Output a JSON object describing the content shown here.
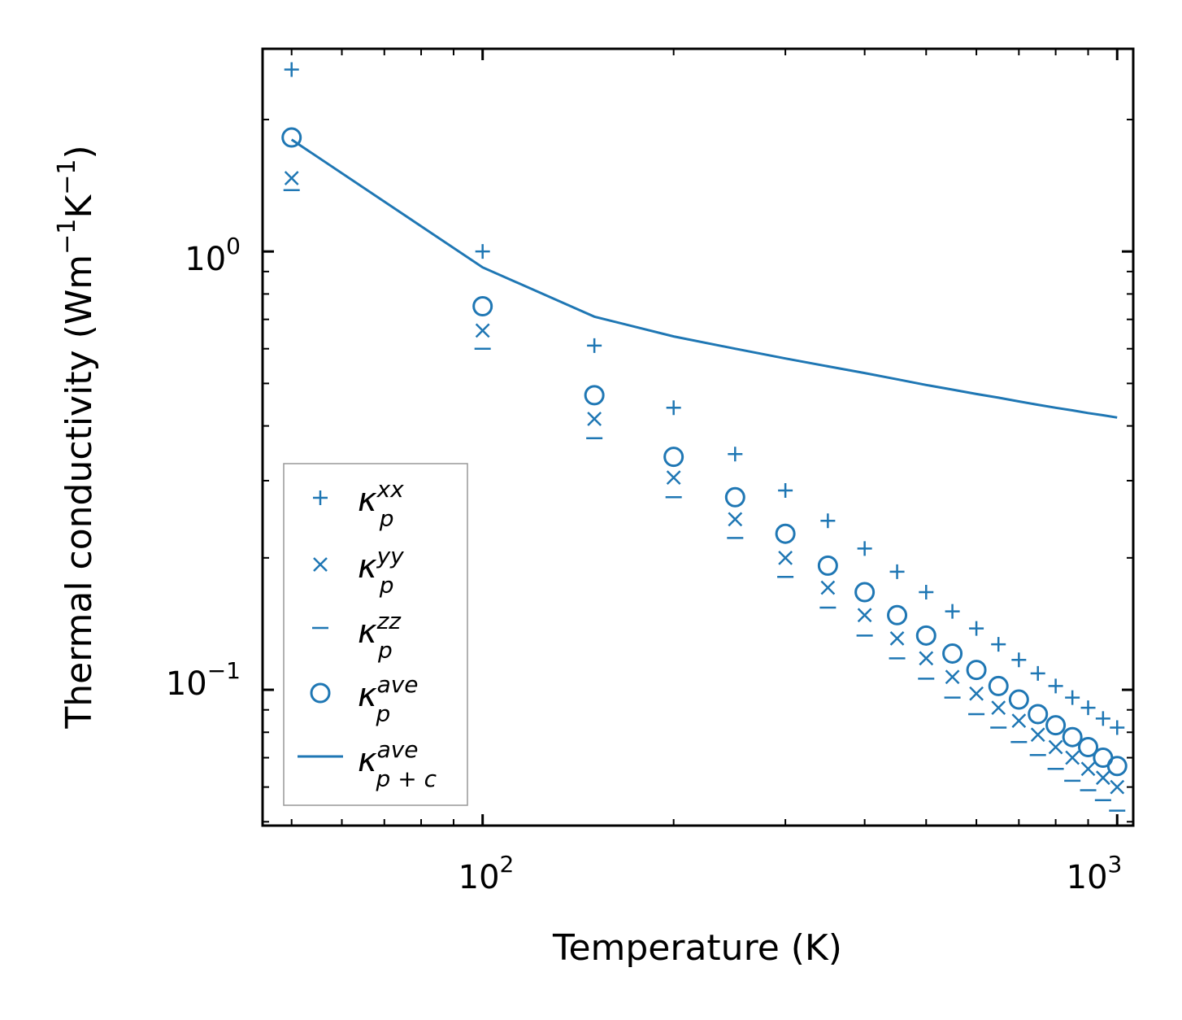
{
  "chart_data": {
    "type": "scatter",
    "xscale": "log",
    "yscale": "log",
    "xlim": [
      45,
      1060
    ],
    "ylim": [
      0.049,
      2.9
    ],
    "xlabel": "Temperature (K)",
    "ylabel": "Thermal conductivity (Wm⁻¹K⁻¹)",
    "ylabel_parts": {
      "pre": "Thermal conductivity (Wm",
      "exp1": "−1",
      "mid": "K",
      "exp2": "−1",
      "post": ")"
    },
    "x_ticks": [
      {
        "value": 100,
        "base": "10",
        "exp": "2"
      },
      {
        "value": 1000,
        "base": "10",
        "exp": "3"
      }
    ],
    "y_ticks": [
      {
        "value": 1.0,
        "base": "10",
        "exp": "0"
      },
      {
        "value": 0.1,
        "base": "10",
        "exp": "−1"
      }
    ],
    "color": "#1f77b4",
    "temperatures": [
      50,
      100,
      150,
      200,
      250,
      300,
      350,
      400,
      450,
      500,
      550,
      600,
      650,
      700,
      750,
      800,
      850,
      900,
      950,
      1000
    ],
    "series": [
      {
        "name": "κ_p^xx",
        "marker": "plus",
        "base": "κ",
        "sup": "xx",
        "sub": "p",
        "values": [
          2.6,
          1.0,
          0.61,
          0.44,
          0.345,
          0.285,
          0.243,
          0.21,
          0.186,
          0.167,
          0.151,
          0.138,
          0.127,
          0.117,
          0.109,
          0.102,
          0.096,
          0.091,
          0.086,
          0.082
        ]
      },
      {
        "name": "κ_p^yy",
        "marker": "x",
        "base": "κ",
        "sup": "yy",
        "sub": "p",
        "values": [
          1.47,
          0.66,
          0.415,
          0.305,
          0.245,
          0.2,
          0.171,
          0.148,
          0.131,
          0.118,
          0.107,
          0.098,
          0.091,
          0.085,
          0.079,
          0.074,
          0.07,
          0.066,
          0.063,
          0.06
        ]
      },
      {
        "name": "κ_p^zz",
        "marker": "minus",
        "base": "κ",
        "sup": "zz",
        "sub": "p",
        "values": [
          1.38,
          0.6,
          0.375,
          0.275,
          0.222,
          0.181,
          0.154,
          0.133,
          0.118,
          0.106,
          0.096,
          0.088,
          0.082,
          0.076,
          0.071,
          0.066,
          0.062,
          0.059,
          0.056,
          0.053
        ]
      },
      {
        "name": "κ_p^ave",
        "marker": "circle",
        "base": "κ",
        "sup": "ave",
        "sub": "p",
        "values": [
          1.82,
          0.75,
          0.47,
          0.34,
          0.275,
          0.227,
          0.192,
          0.167,
          0.148,
          0.133,
          0.121,
          0.111,
          0.102,
          0.095,
          0.088,
          0.083,
          0.078,
          0.074,
          0.07,
          0.067
        ]
      },
      {
        "name": "κ_p+c^ave",
        "marker": "line",
        "base": "κ",
        "sup": "ave",
        "sub": "p + c",
        "x": [
          50,
          100,
          150,
          200,
          250,
          300,
          350,
          400,
          450,
          500,
          550,
          600,
          650,
          700,
          750,
          800,
          850,
          900,
          950,
          1000
        ],
        "values": [
          1.8,
          0.92,
          0.71,
          0.64,
          0.6,
          0.57,
          0.547,
          0.528,
          0.511,
          0.496,
          0.484,
          0.473,
          0.464,
          0.455,
          0.447,
          0.44,
          0.434,
          0.428,
          0.423,
          0.418
        ]
      }
    ],
    "legend_position": "lower-left"
  }
}
